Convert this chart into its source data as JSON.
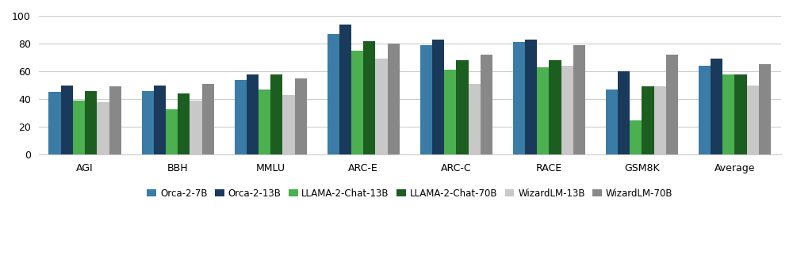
{
  "categories": [
    "AGI",
    "BBH",
    "MMLU",
    "ARC-E",
    "ARC-C",
    "RACE",
    "GSM8K",
    "Average"
  ],
  "series": [
    {
      "label": "Orca-2-7B",
      "color": "#3a7ca5",
      "values": [
        45,
        46,
        54,
        87,
        79,
        81,
        47,
        64
      ]
    },
    {
      "label": "Orca-2-13B",
      "color": "#1a3a5c",
      "values": [
        50,
        50,
        58,
        94,
        83,
        83,
        60,
        69
      ]
    },
    {
      "label": "LLAMA-2-Chat-13B",
      "color": "#4caf50",
      "values": [
        39,
        33,
        47,
        75,
        61,
        63,
        25,
        58
      ]
    },
    {
      "label": "LLAMA-2-Chat-70B",
      "color": "#1b5e20",
      "values": [
        46,
        44,
        58,
        82,
        68,
        68,
        49,
        58
      ]
    },
    {
      "label": "WizardLM-13B",
      "color": "#c8c8c8",
      "values": [
        38,
        39,
        43,
        69,
        51,
        64,
        49,
        50
      ]
    },
    {
      "label": "WizardLM-70B",
      "color": "#888888",
      "values": [
        49,
        51,
        55,
        80,
        72,
        79,
        72,
        65
      ]
    }
  ],
  "ylim": [
    0,
    100
  ],
  "yticks": [
    0,
    20,
    40,
    60,
    80,
    100
  ],
  "background_color": "#ffffff",
  "grid_color": "#cccccc",
  "bar_width": 0.13,
  "legend_fontsize": 8.5,
  "tick_fontsize": 9,
  "figsize": [
    10.0,
    3.22
  ],
  "dpi": 100
}
